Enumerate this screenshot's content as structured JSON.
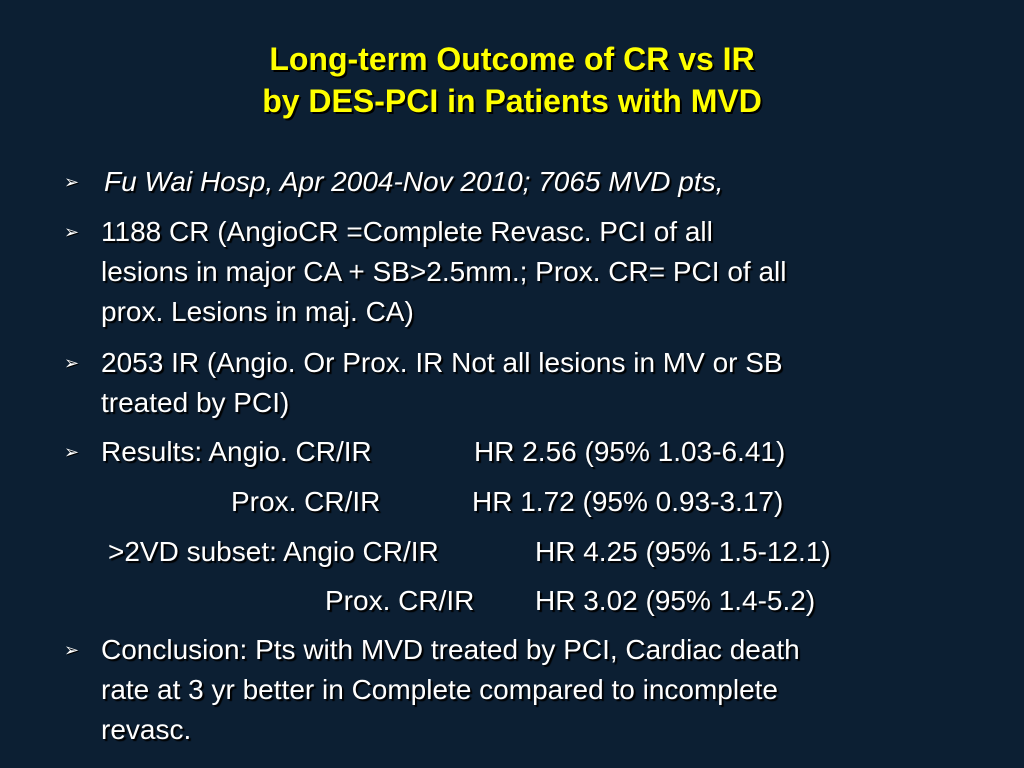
{
  "slide": {
    "title_line1": "Long-term Outcome of CR vs IR",
    "title_line2": "by DES-PCI in Patients with MVD",
    "bullet_glyph": "➢",
    "b1": "Fu Wai Hosp, Apr 2004-Nov 2010; 7065 MVD pts,",
    "b2_l1": "1188 CR (AngioCR =Complete Revasc. PCI of all",
    "b2_l2": "lesions in major CA + SB>2.5mm.; Prox. CR= PCI of all",
    "b2_l3": "prox. Lesions in maj. CA)",
    "b3_l1": "2053 IR (Angio. Or Prox. IR Not all lesions in MV or SB",
    "b3_l2": "treated by PCI)",
    "r1_label": "Results: Angio. CR/IR",
    "r1_value": "HR 2.56 (95% 1.03-6.41)",
    "r2_label": "Prox. CR/IR",
    "r2_value": "HR 1.72 (95% 0.93-3.17)",
    "r3_label": ">2VD subset: Angio CR/IR",
    "r3_value": "HR 4.25 (95% 1.5-12.1)",
    "r4_label": "Prox. CR/IR",
    "r4_value": "HR 3.02 (95% 1.4-5.2)",
    "b5_l1": "Conclusion: Pts with MVD treated by PCI, Cardiac death",
    "b5_l2": "rate at 3 yr better in Complete compared to incomplete",
    "b5_l3": "revasc."
  }
}
